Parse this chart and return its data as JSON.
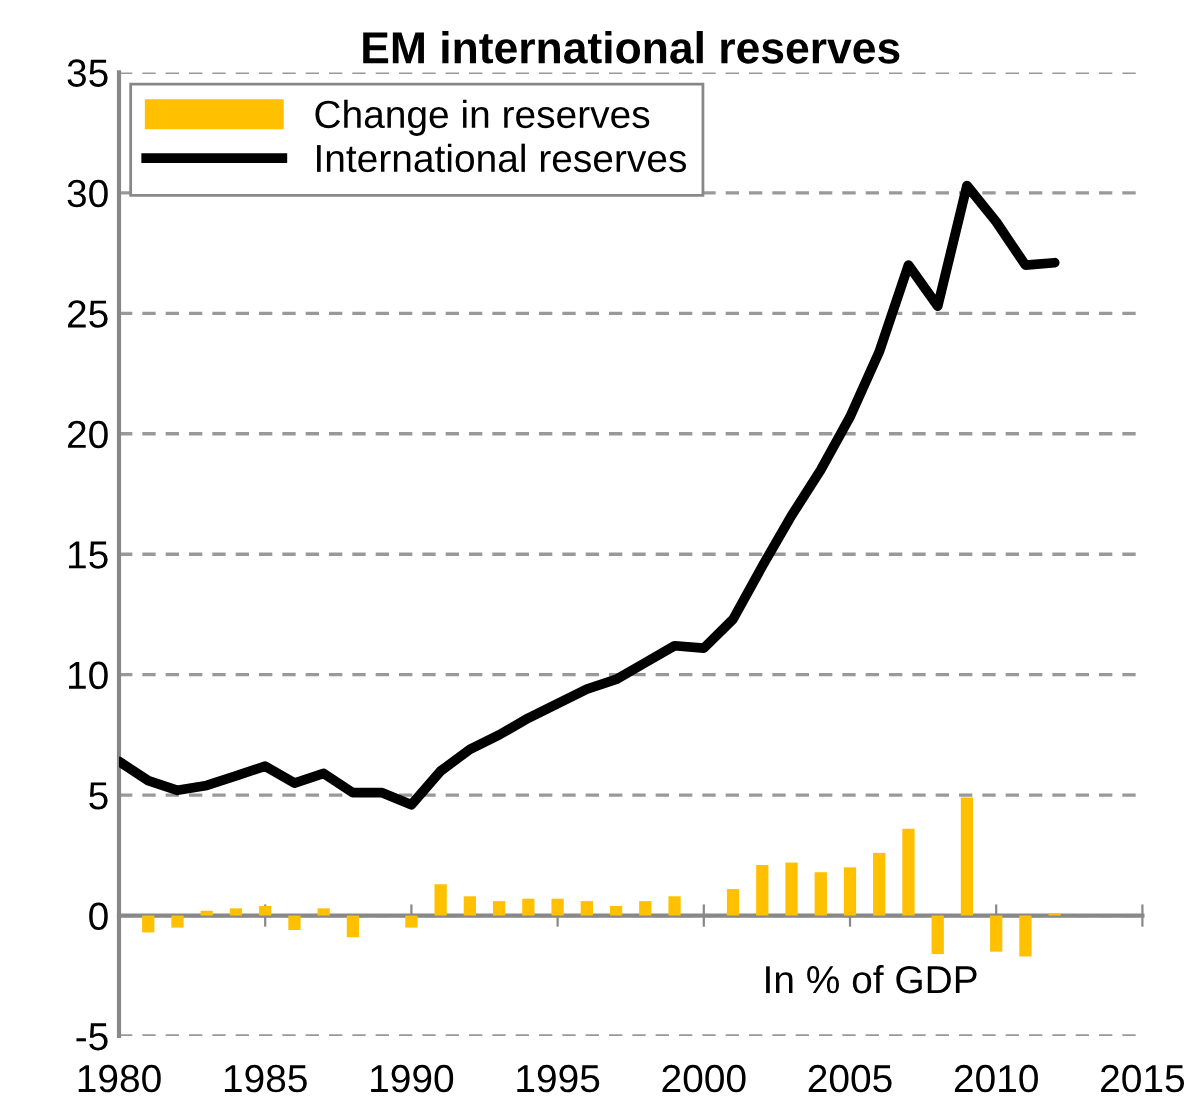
{
  "chart_data": {
    "type": "bar",
    "title": "EM international reserves",
    "x": [
      1980,
      1981,
      1982,
      1983,
      1984,
      1985,
      1986,
      1987,
      1988,
      1989,
      1990,
      1991,
      1992,
      1993,
      1994,
      1995,
      1996,
      1997,
      1998,
      1999,
      2000,
      2001,
      2002,
      2003,
      2004,
      2005,
      2006,
      2007,
      2008,
      2009,
      2010,
      2011,
      2012
    ],
    "series": [
      {
        "name": "Change in reserves",
        "color": "#ffc000",
        "values": [
          null,
          -0.7,
          -0.5,
          0.2,
          0.3,
          0.4,
          -0.6,
          0.3,
          -0.9,
          null,
          -0.5,
          1.3,
          0.8,
          0.6,
          0.7,
          0.7,
          0.6,
          0.4,
          0.6,
          0.8,
          null,
          1.1,
          2.1,
          2.2,
          1.8,
          2.0,
          2.6,
          3.6,
          -1.6,
          4.9,
          -1.5,
          -1.7,
          0.1
        ]
      },
      {
        "name": "International reserves",
        "type": "line",
        "color": "#000000",
        "values": [
          6.4,
          5.6,
          5.2,
          5.4,
          5.8,
          6.2,
          5.5,
          5.9,
          5.1,
          5.1,
          4.6,
          6.0,
          6.9,
          7.5,
          8.2,
          8.8,
          9.4,
          9.8,
          10.5,
          11.2,
          11.1,
          12.3,
          14.5,
          16.6,
          18.5,
          20.7,
          23.4,
          27.0,
          25.3,
          30.3,
          28.8,
          27.0,
          27.1
        ]
      }
    ],
    "xlim": [
      1980,
      2015
    ],
    "xticks": [
      1980,
      1985,
      1990,
      1995,
      2000,
      2005,
      2010,
      2015
    ],
    "ylim": [
      -5,
      35
    ],
    "yticks": [
      -5,
      0,
      5,
      10,
      15,
      20,
      25,
      30,
      35
    ],
    "grid": "y",
    "legend": "top left",
    "line_style": "solid",
    "marker": "none",
    "annotations": [
      "In % of GDP"
    ]
  }
}
